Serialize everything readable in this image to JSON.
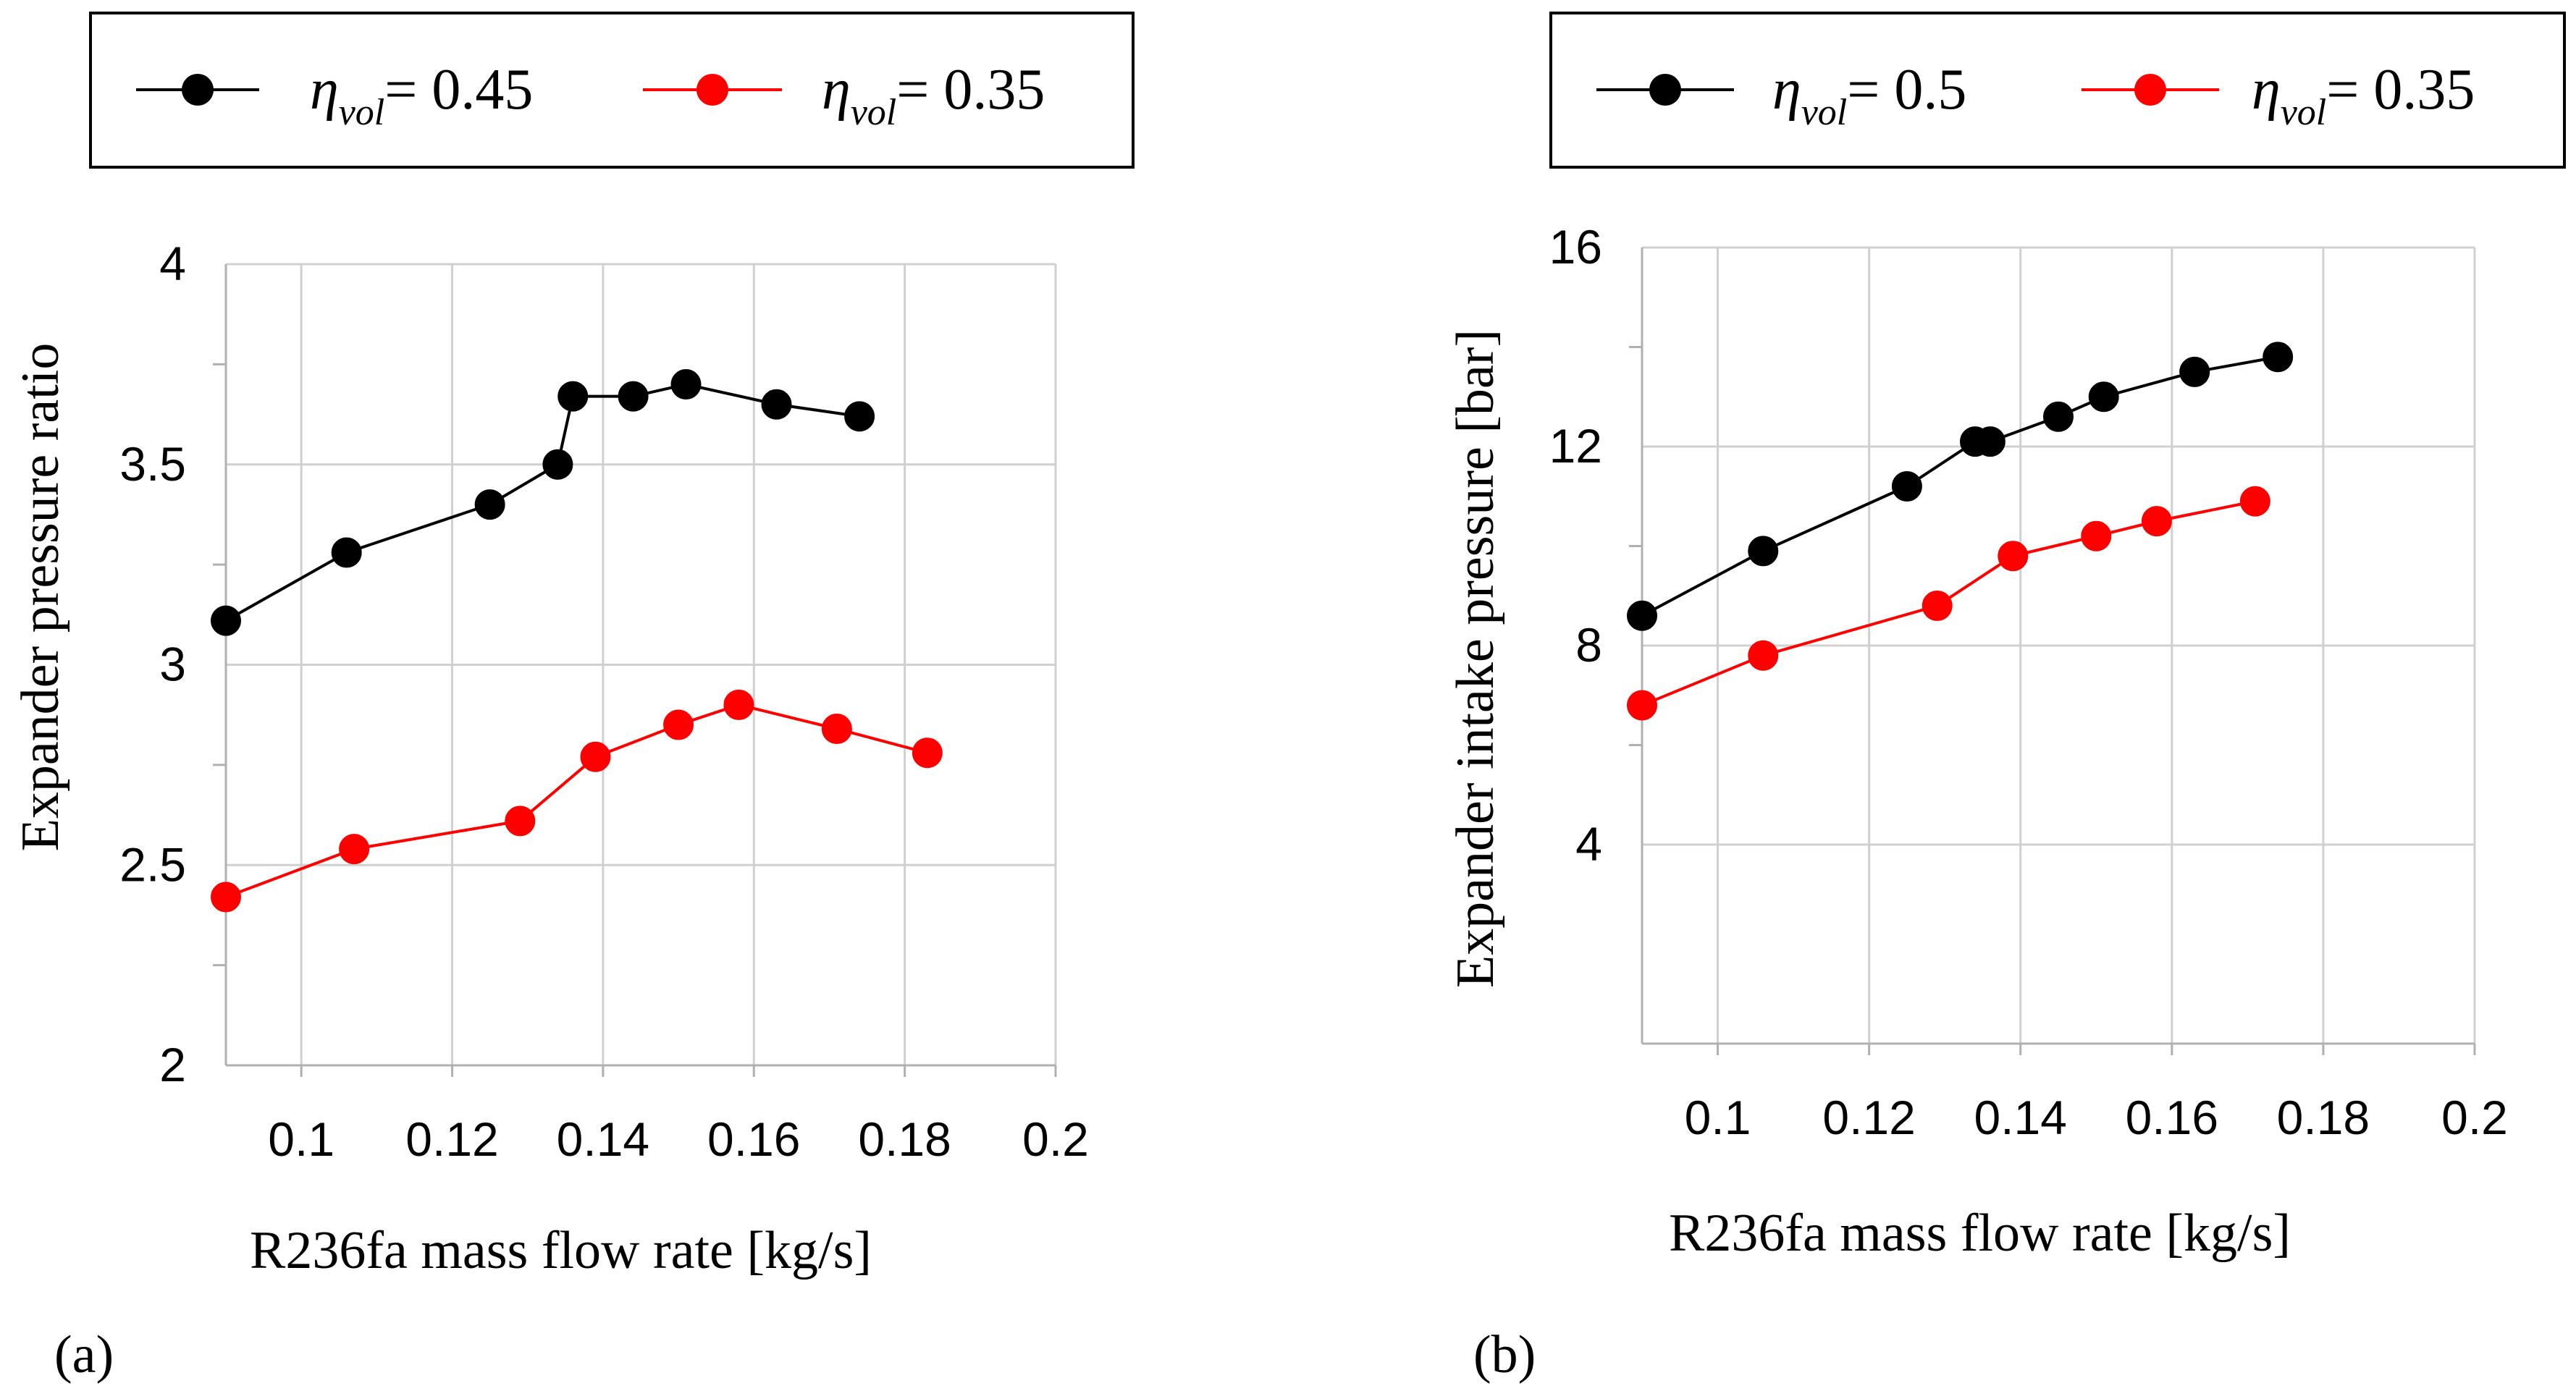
{
  "chart_data": [
    {
      "id": "a",
      "type": "line",
      "panel_label": "(a)",
      "xlabel": "R236fa mass flow rate [kg/s]",
      "ylabel": "Expander pressure ratio",
      "xlim": [
        0.09,
        0.2
      ],
      "ylim": [
        2,
        4
      ],
      "x_ticks": [
        0.1,
        0.12,
        0.14,
        0.16,
        0.18,
        0.2
      ],
      "x_tick_labels": [
        "0.1",
        "0.12",
        "0.14",
        "0.16",
        "0.18",
        "0.2"
      ],
      "y_ticks": [
        2,
        2.5,
        3,
        3.5,
        4
      ],
      "y_tick_labels": [
        "2",
        "2.5",
        "3",
        "3.5",
        "4"
      ],
      "grid": true,
      "legend": {
        "placement": "top",
        "symbol": "η",
        "subscript": "vol",
        "entries": [
          {
            "value_text": "= 0.45",
            "color": "#000000"
          },
          {
            "value_text": "= 0.35",
            "color": "#ff0000"
          }
        ]
      },
      "series": [
        {
          "name": "ηvol = 0.45",
          "color": "#000000",
          "x": [
            0.09,
            0.106,
            0.125,
            0.134,
            0.136,
            0.144,
            0.151,
            0.163,
            0.174
          ],
          "y": [
            3.11,
            3.28,
            3.4,
            3.5,
            3.67,
            3.67,
            3.7,
            3.65,
            3.62
          ]
        },
        {
          "name": "ηvol = 0.35",
          "color": "#ff0000",
          "x": [
            0.09,
            0.107,
            0.129,
            0.139,
            0.15,
            0.158,
            0.171,
            0.183
          ],
          "y": [
            2.42,
            2.54,
            2.61,
            2.77,
            2.85,
            2.9,
            2.84,
            2.78
          ]
        }
      ]
    },
    {
      "id": "b",
      "type": "line",
      "panel_label": "(b)",
      "xlabel": "R236fa mass flow rate [kg/s]",
      "ylabel": "Expander intake pressure [bar]",
      "xlim": [
        0.09,
        0.2
      ],
      "ylim": [
        0,
        16
      ],
      "x_ticks": [
        0.1,
        0.12,
        0.14,
        0.16,
        0.18,
        0.2
      ],
      "x_tick_labels": [
        "0.1",
        "0.12",
        "0.14",
        "0.16",
        "0.18",
        "0.2"
      ],
      "y_ticks": [
        4,
        8,
        12,
        16
      ],
      "y_tick_labels": [
        "4",
        "8",
        "12",
        "16"
      ],
      "grid": true,
      "legend": {
        "placement": "top",
        "symbol": "η",
        "subscript": "vol",
        "entries": [
          {
            "value_text": "= 0.5",
            "color": "#000000"
          },
          {
            "value_text": "= 0.35",
            "color": "#ff0000"
          }
        ]
      },
      "series": [
        {
          "name": "ηvol = 0.5",
          "color": "#000000",
          "x": [
            0.09,
            0.106,
            0.125,
            0.134,
            0.136,
            0.145,
            0.151,
            0.163,
            0.174
          ],
          "y": [
            8.6,
            9.9,
            11.2,
            12.1,
            12.1,
            12.6,
            13.0,
            13.5,
            13.8
          ]
        },
        {
          "name": "ηvol = 0.35",
          "color": "#ff0000",
          "x": [
            0.09,
            0.106,
            0.129,
            0.139,
            0.15,
            0.158,
            0.171
          ],
          "y": [
            6.8,
            7.8,
            8.8,
            9.8,
            10.2,
            10.5,
            10.9
          ]
        }
      ]
    }
  ]
}
